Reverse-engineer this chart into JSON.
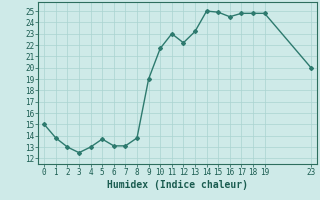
{
  "x": [
    0,
    1,
    2,
    3,
    4,
    5,
    6,
    7,
    8,
    9,
    10,
    11,
    12,
    13,
    14,
    15,
    16,
    17,
    18,
    19,
    23
  ],
  "y": [
    15,
    13.8,
    13,
    12.5,
    13,
    13.7,
    13.1,
    13.1,
    13.8,
    19,
    21.7,
    23,
    22.2,
    23.2,
    25,
    24.9,
    24.5,
    24.8,
    24.8,
    24.8,
    20
  ],
  "xlabel": "Humidex (Indice chaleur)",
  "line_color": "#2d7a6e",
  "marker": "D",
  "marker_size": 2,
  "bg_color": "#ceeae8",
  "grid_color": "#aad4d0",
  "xlim": [
    -0.5,
    23.5
  ],
  "ylim": [
    11.5,
    25.8
  ],
  "yticks": [
    12,
    13,
    14,
    15,
    16,
    17,
    18,
    19,
    20,
    21,
    22,
    23,
    24,
    25
  ],
  "xticks": [
    0,
    1,
    2,
    3,
    4,
    5,
    6,
    7,
    8,
    9,
    10,
    11,
    12,
    13,
    14,
    15,
    16,
    17,
    18,
    19,
    23
  ],
  "tick_label_color": "#1a5c50",
  "axis_color": "#2d6e5e",
  "xlabel_fontsize": 7,
  "tick_fontsize": 5.5,
  "linewidth": 1.0
}
